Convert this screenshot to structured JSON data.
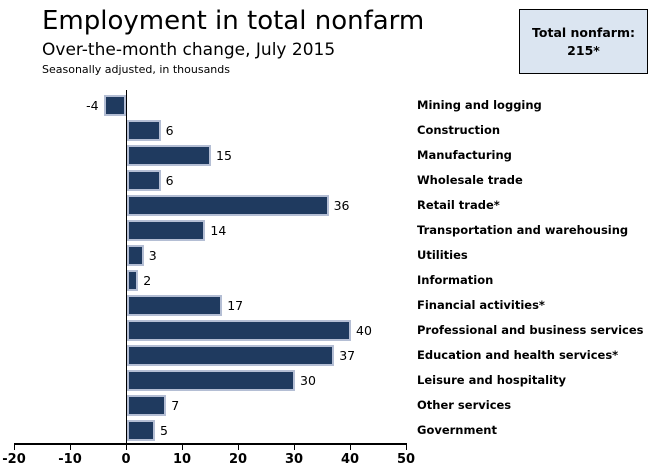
{
  "header": {
    "title": "Employment in total nonfarm",
    "subtitle": "Over-the-month change, July 2015",
    "note": "Seasonally adjusted, in thousands"
  },
  "callout": {
    "label": "Total nonfarm:",
    "value": "215*",
    "fill_color": "#dbe5f1",
    "border_color": "#000000"
  },
  "chart_data": {
    "type": "bar",
    "orientation": "horizontal",
    "title": "Employment in total nonfarm",
    "subtitle": "Over-the-month change, July 2015",
    "units_note": "Seasonally adjusted, in thousands",
    "categories": [
      "Mining and logging",
      "Construction",
      "Manufacturing",
      "Wholesale trade",
      "Retail trade*",
      "Transportation and warehousing",
      "Utilities",
      "Information",
      "Financial activities*",
      "Professional and business services",
      "Education and health services*",
      "Leisure and hospitality",
      "Other services",
      "Government"
    ],
    "values": [
      -4,
      6,
      15,
      6,
      36,
      14,
      3,
      2,
      17,
      40,
      37,
      30,
      7,
      5
    ],
    "xlim": [
      -20,
      50
    ],
    "xticks": [
      -20,
      -10,
      0,
      10,
      20,
      30,
      40,
      50
    ],
    "grid": false,
    "value_labels": true,
    "bar_color": "#1f3a5f",
    "bar_border_color": "#b4bed4",
    "axis_color": "#000000",
    "legend_position": "none"
  }
}
